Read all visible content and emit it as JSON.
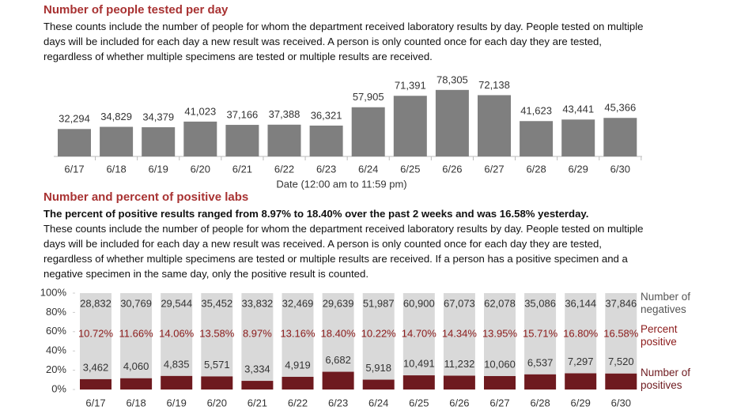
{
  "chart_data": [
    {
      "type": "bar",
      "title": "Number of people tested per day",
      "description": "These counts include the number of people for whom the department received laboratory results by day. People tested on multiple days will be included for each day a new result was received. A person is only counted once for each day they are tested, regardless of whether multiple specimens are tested or multiple results are received.",
      "x_label": "Date (12:00 am to 11:59 pm)",
      "categories": [
        "6/17",
        "6/18",
        "6/19",
        "6/20",
        "6/21",
        "6/22",
        "6/23",
        "6/24",
        "6/25",
        "6/26",
        "6/27",
        "6/28",
        "6/29",
        "6/30"
      ],
      "values": [
        32294,
        34829,
        34379,
        41023,
        37166,
        37388,
        36321,
        57905,
        71391,
        78305,
        72138,
        41623,
        43441,
        45366
      ],
      "value_labels": [
        "32,294",
        "34,829",
        "34,379",
        "41,023",
        "37,166",
        "37,388",
        "36,321",
        "57,905",
        "71,391",
        "78,305",
        "72,138",
        "41,623",
        "43,441",
        "45,366"
      ],
      "color": "#7f7f7f",
      "ylim": [
        0,
        80000
      ]
    },
    {
      "type": "stacked_percent_bar",
      "title": "Number and percent of positive labs",
      "subtitle": "The percent of positive results ranged from 8.97% to 18.40% over the past 2 weeks and was 16.58% yesterday.",
      "description": "These counts include the number of people for whom the department received laboratory results by day. People tested on multiple days will be included for each day a new result was received. A person is only counted once for each day they are tested, regardless of whether multiple specimens are tested or multiple results are received. If a person has a positive specimen and a negative specimen in the same day, only the positive result is counted.",
      "categories": [
        "6/17",
        "6/18",
        "6/19",
        "6/20",
        "6/21",
        "6/22",
        "6/23",
        "6/24",
        "6/25",
        "6/26",
        "6/27",
        "6/28",
        "6/29",
        "6/30"
      ],
      "series": [
        {
          "name": "Number of negatives",
          "color": "#d9d9d9",
          "values": [
            28832,
            30769,
            29544,
            35452,
            33832,
            32469,
            29639,
            51987,
            60900,
            67073,
            62078,
            35086,
            36144,
            37846
          ],
          "value_labels": [
            "28,832",
            "30,769",
            "29,544",
            "35,452",
            "33,832",
            "32,469",
            "29,639",
            "51,987",
            "60,900",
            "67,073",
            "62,078",
            "35,086",
            "36,144",
            "37,846"
          ]
        },
        {
          "name": "Percent positive",
          "color": "#8b1a1a",
          "axis": "y",
          "values": [
            10.72,
            11.66,
            14.06,
            13.58,
            8.97,
            13.16,
            18.4,
            10.22,
            14.7,
            14.34,
            13.95,
            15.71,
            16.8,
            16.58
          ],
          "value_labels": [
            "10.72%",
            "11.66%",
            "14.06%",
            "13.58%",
            "8.97%",
            "13.16%",
            "18.40%",
            "10.22%",
            "14.70%",
            "14.34%",
            "13.95%",
            "15.71%",
            "16.80%",
            "16.58%"
          ]
        },
        {
          "name": "Number of positives",
          "color": "#6e1a1f",
          "values": [
            3462,
            4060,
            4835,
            5571,
            3334,
            4919,
            6682,
            5918,
            10491,
            11232,
            10060,
            6537,
            7297,
            7520
          ],
          "value_labels": [
            "3,462",
            "4,060",
            "4,835",
            "5,571",
            "3,334",
            "4,919",
            "6,682",
            "5,918",
            "10,491",
            "11,232",
            "10,060",
            "6,537",
            "7,297",
            "7,520"
          ]
        }
      ],
      "ylim": [
        0,
        100
      ],
      "yticks": [
        {
          "value": 0,
          "label": "0%"
        },
        {
          "value": 20,
          "label": "20%"
        },
        {
          "value": 40,
          "label": "40%"
        },
        {
          "value": 60,
          "label": "60%"
        },
        {
          "value": 80,
          "label": "80%"
        },
        {
          "value": 100,
          "label": "100%"
        }
      ]
    }
  ]
}
